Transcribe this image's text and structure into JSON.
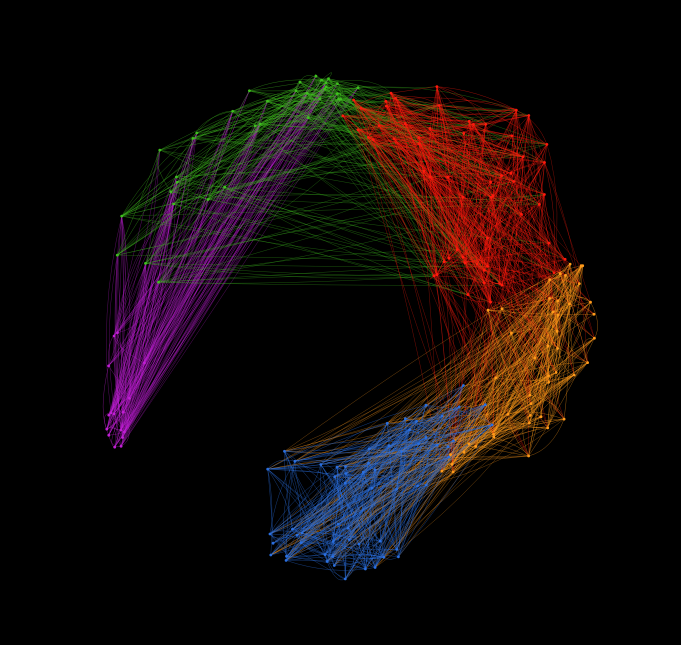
{
  "background": "#000000",
  "clusters": [
    {
      "name": "green",
      "color": "#3fbf1f",
      "nodes": 34,
      "edge_density": 0.55
    },
    {
      "name": "red",
      "color": "#ff1a0d",
      "nodes": 60,
      "edge_density": 0.6
    },
    {
      "name": "orange",
      "color": "#ff9a1a",
      "nodes": 46,
      "edge_density": 0.6
    },
    {
      "name": "blue",
      "color": "#2a6fe0",
      "nodes": 60,
      "edge_density": 0.65
    },
    {
      "name": "purple",
      "color": "#c21fd6",
      "nodes": 16,
      "edge_density": 0.6
    }
  ]
}
